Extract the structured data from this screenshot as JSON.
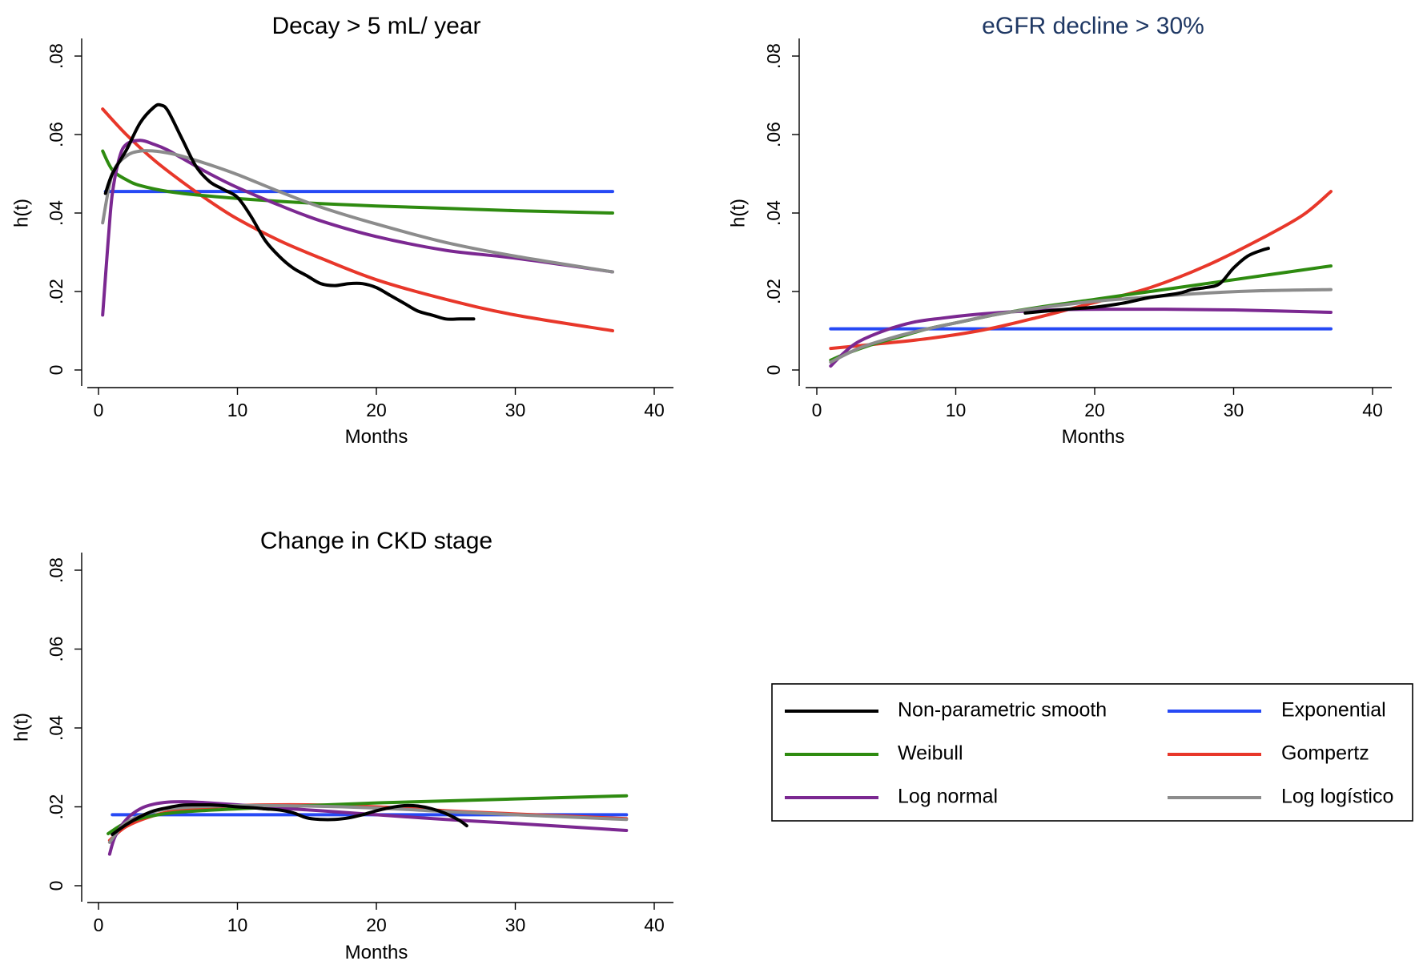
{
  "chart_data": [
    {
      "type": "line",
      "title": "Decay > 5 mL/ year",
      "title_color": "#000000",
      "xlabel": "Months",
      "ylabel": "h(t)",
      "xlim": [
        0,
        40
      ],
      "ylim": [
        0,
        0.08
      ],
      "xticks": [
        "0",
        "10",
        "20",
        "30",
        "40"
      ],
      "yticks": [
        "0",
        ".02",
        ".04",
        ".06",
        ".08"
      ],
      "series": [
        {
          "name": "Non-parametric smooth",
          "x": [
            0.5,
            1,
            2,
            3,
            4,
            4.5,
            5,
            6,
            7,
            8,
            9,
            10,
            11,
            12,
            13,
            14,
            15,
            16,
            17,
            18,
            19,
            20,
            21,
            22,
            23,
            24,
            25,
            26,
            27
          ],
          "values": [
            0.045,
            0.05,
            0.056,
            0.063,
            0.067,
            0.0675,
            0.066,
            0.059,
            0.052,
            0.048,
            0.046,
            0.044,
            0.039,
            0.033,
            0.029,
            0.026,
            0.024,
            0.022,
            0.0215,
            0.022,
            0.022,
            0.021,
            0.019,
            0.017,
            0.015,
            0.014,
            0.013,
            0.013,
            0.013
          ]
        },
        {
          "name": "Exponential",
          "x": [
            0.5,
            37
          ],
          "values": [
            0.0455,
            0.0455
          ]
        },
        {
          "name": "Weibull",
          "x": [
            0.3,
            1,
            2,
            3,
            5,
            8,
            12,
            16,
            20,
            25,
            30,
            37
          ],
          "values": [
            0.0558,
            0.051,
            0.0485,
            0.047,
            0.0455,
            0.0443,
            0.0432,
            0.0424,
            0.0418,
            0.0412,
            0.0406,
            0.04
          ]
        },
        {
          "name": "Gompertz",
          "x": [
            0.3,
            2,
            4,
            6,
            8,
            10,
            13,
            16,
            20,
            25,
            30,
            37
          ],
          "values": [
            0.0665,
            0.06,
            0.0535,
            0.048,
            0.043,
            0.0385,
            0.033,
            0.0285,
            0.023,
            0.018,
            0.014,
            0.01
          ]
        },
        {
          "name": "Log normal",
          "x": [
            0.3,
            0.7,
            1,
            1.5,
            2,
            3,
            4,
            5,
            6,
            8,
            10,
            13,
            16,
            20,
            25,
            30,
            37
          ],
          "values": [
            0.014,
            0.033,
            0.045,
            0.054,
            0.0575,
            0.0585,
            0.0575,
            0.056,
            0.054,
            0.05,
            0.0465,
            0.042,
            0.038,
            0.034,
            0.0305,
            0.0285,
            0.025
          ]
        },
        {
          "name": "Log logístico",
          "x": [
            0.3,
            1,
            2,
            3,
            4,
            5,
            6,
            8,
            10,
            13,
            16,
            20,
            25,
            30,
            37
          ],
          "values": [
            0.0375,
            0.05,
            0.0545,
            0.0558,
            0.0558,
            0.0553,
            0.0545,
            0.0523,
            0.0498,
            0.0455,
            0.0415,
            0.0372,
            0.0325,
            0.029,
            0.025
          ]
        }
      ]
    },
    {
      "type": "line",
      "title": "eGFR decline > 30%",
      "title_color": "#1f3864",
      "xlabel": "Months",
      "ylabel": "h(t)",
      "xlim": [
        0,
        40
      ],
      "ylim": [
        0,
        0.08
      ],
      "xticks": [
        "0",
        "10",
        "20",
        "30",
        "40"
      ],
      "yticks": [
        "0",
        ".02",
        ".04",
        ".06",
        ".08"
      ],
      "series": [
        {
          "name": "Non-parametric smooth",
          "x": [
            15,
            18,
            20,
            22,
            24,
            26,
            27,
            28,
            29,
            30,
            31,
            32,
            32.5
          ],
          "values": [
            0.0145,
            0.0155,
            0.016,
            0.017,
            0.0185,
            0.0195,
            0.0205,
            0.021,
            0.022,
            0.026,
            0.029,
            0.0305,
            0.031
          ]
        },
        {
          "name": "Exponential",
          "x": [
            1,
            37
          ],
          "values": [
            0.0105,
            0.0105
          ]
        },
        {
          "name": "Weibull",
          "x": [
            1,
            2,
            4,
            6,
            8,
            10,
            13,
            16,
            20,
            24,
            28,
            32,
            37
          ],
          "values": [
            0.0025,
            0.004,
            0.0065,
            0.0085,
            0.0105,
            0.012,
            0.0142,
            0.016,
            0.018,
            0.02,
            0.022,
            0.024,
            0.0265
          ]
        },
        {
          "name": "Gompertz",
          "x": [
            1,
            4,
            8,
            12,
            16,
            20,
            24,
            28,
            32,
            35,
            37
          ],
          "values": [
            0.0055,
            0.0065,
            0.008,
            0.0102,
            0.0135,
            0.0172,
            0.021,
            0.0265,
            0.0335,
            0.0395,
            0.0455
          ]
        },
        {
          "name": "Log normal",
          "x": [
            1,
            2,
            3,
            5,
            7,
            9,
            11,
            13,
            15,
            18,
            21,
            25,
            30,
            37
          ],
          "values": [
            0.001,
            0.0045,
            0.0072,
            0.0102,
            0.0122,
            0.0132,
            0.014,
            0.0146,
            0.015,
            0.0154,
            0.0155,
            0.0155,
            0.0153,
            0.0147
          ]
        },
        {
          "name": "Log logístico",
          "x": [
            1,
            3,
            5,
            7,
            10,
            13,
            16,
            20,
            24,
            28,
            32,
            37
          ],
          "values": [
            0.002,
            0.0055,
            0.0078,
            0.0097,
            0.012,
            0.0142,
            0.0158,
            0.0175,
            0.0186,
            0.0196,
            0.0202,
            0.0205
          ]
        }
      ]
    },
    {
      "type": "line",
      "title": "Change in CKD stage",
      "title_color": "#000000",
      "xlabel": "Months",
      "ylabel": "h(t)",
      "xlim": [
        0,
        40
      ],
      "ylim": [
        0,
        0.08
      ],
      "xticks": [
        "0",
        "10",
        "20",
        "30",
        "40"
      ],
      "yticks": [
        "0",
        ".02",
        ".04",
        ".06",
        ".08"
      ],
      "series": [
        {
          "name": "Non-parametric smooth",
          "x": [
            1,
            2,
            3,
            4,
            5,
            6,
            7,
            8,
            9,
            10,
            11,
            12,
            13,
            14,
            15,
            16,
            17,
            18,
            19,
            20,
            21,
            22,
            23,
            24,
            25,
            26,
            26.5
          ],
          "values": [
            0.013,
            0.0155,
            0.0175,
            0.019,
            0.0198,
            0.0204,
            0.0205,
            0.0205,
            0.0203,
            0.02,
            0.0198,
            0.0195,
            0.0192,
            0.0185,
            0.0172,
            0.0168,
            0.0168,
            0.0172,
            0.018,
            0.019,
            0.0198,
            0.0203,
            0.0202,
            0.0195,
            0.0183,
            0.0165,
            0.0152
          ]
        },
        {
          "name": "Exponential",
          "x": [
            1,
            38
          ],
          "values": [
            0.018,
            0.018
          ]
        },
        {
          "name": "Weibull",
          "x": [
            0.7,
            2,
            4,
            6,
            10,
            15,
            20,
            25,
            30,
            38
          ],
          "values": [
            0.0132,
            0.016,
            0.0178,
            0.0187,
            0.0195,
            0.0203,
            0.021,
            0.0215,
            0.022,
            0.0228
          ]
        },
        {
          "name": "Gompertz",
          "x": [
            0.8,
            2,
            4,
            6,
            10,
            15,
            20,
            25,
            30,
            38
          ],
          "values": [
            0.0115,
            0.015,
            0.0178,
            0.0192,
            0.0203,
            0.0205,
            0.02,
            0.019,
            0.0182,
            0.017
          ]
        },
        {
          "name": "Log normal",
          "x": [
            0.8,
            1.2,
            2,
            3,
            4,
            5,
            6,
            7,
            8,
            10,
            13,
            16,
            20,
            25,
            30,
            38
          ],
          "values": [
            0.008,
            0.0125,
            0.0168,
            0.0195,
            0.0207,
            0.0212,
            0.0213,
            0.0212,
            0.021,
            0.0205,
            0.0197,
            0.019,
            0.018,
            0.0168,
            0.0158,
            0.014
          ]
        },
        {
          "name": "Log logístico",
          "x": [
            0.8,
            2,
            4,
            6,
            10,
            15,
            20,
            25,
            30,
            38
          ],
          "values": [
            0.011,
            0.016,
            0.0188,
            0.0198,
            0.0203,
            0.0202,
            0.0197,
            0.0188,
            0.018,
            0.0168
          ]
        }
      ]
    }
  ],
  "legend": {
    "placement": "bottom-right",
    "entries": [
      {
        "name": "Non-parametric smooth",
        "color": "#000000"
      },
      {
        "name": "Exponential",
        "color": "#2649f5"
      },
      {
        "name": "Weibull",
        "color": "#2e8b10"
      },
      {
        "name": "Gompertz",
        "color": "#e8372a"
      },
      {
        "name": "Log normal",
        "color": "#7b2891"
      },
      {
        "name": "Log logístico",
        "color": "#8c8c8c"
      }
    ]
  },
  "colors": {
    "Non-parametric smooth": "#000000",
    "Exponential": "#2649f5",
    "Weibull": "#2e8b10",
    "Gompertz": "#e8372a",
    "Log normal": "#7b2891",
    "Log logístico": "#8c8c8c"
  }
}
